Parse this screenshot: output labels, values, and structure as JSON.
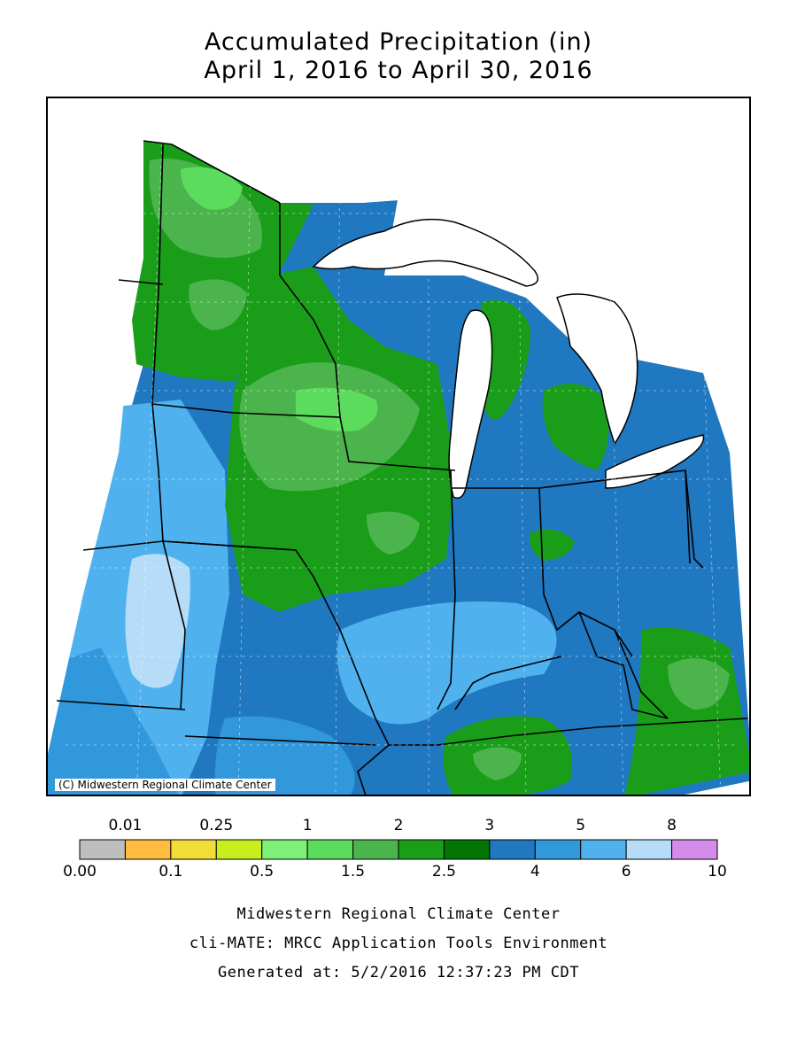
{
  "title_line1": "Accumulated Precipitation (in)",
  "title_line2": "April 1, 2016 to April 30, 2016",
  "copyright": "(C) Midwestern Regional Climate Center",
  "legend": {
    "bins": [
      {
        "color": "#bebebe"
      },
      {
        "color": "#ffbc3e"
      },
      {
        "color": "#f2dc38"
      },
      {
        "color": "#c8ee1e"
      },
      {
        "color": "#7ef07a"
      },
      {
        "color": "#5cdc5c"
      },
      {
        "color": "#4cb44c"
      },
      {
        "color": "#1a9e1a"
      },
      {
        "color": "#037503"
      },
      {
        "color": "#1f78c0"
      },
      {
        "color": "#3198db"
      },
      {
        "color": "#4fb2ef"
      },
      {
        "color": "#b7dcf8"
      },
      {
        "color": "#d48bea"
      }
    ],
    "top_labels": [
      "0.01",
      "0.25",
      "1",
      "2",
      "3",
      "5",
      "8"
    ],
    "bottom_labels": [
      "0.00",
      "0.1",
      "0.5",
      "1.5",
      "2.5",
      "4",
      "6",
      "10"
    ]
  },
  "footer_line1": "Midwestern Regional Climate Center",
  "footer_line2": "cli-MATE: MRCC Application Tools Environment",
  "footer_line3": "Generated at: 5/2/2016 12:37:23 PM CDT"
}
